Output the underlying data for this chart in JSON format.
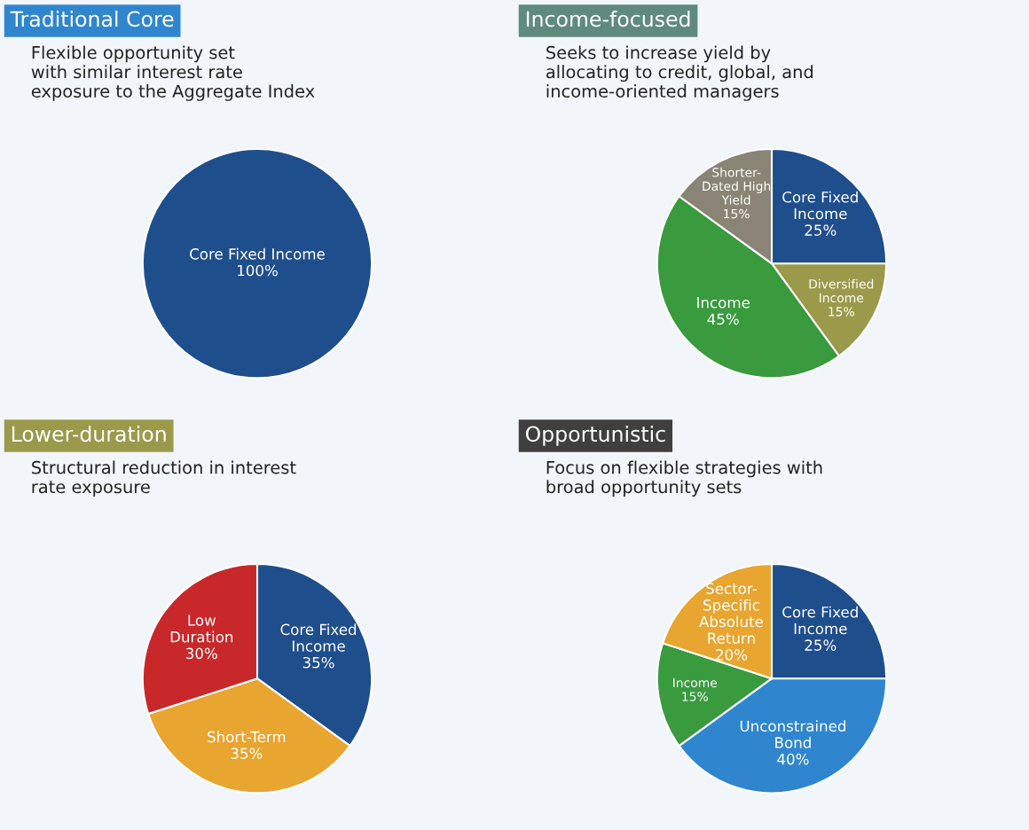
{
  "chart_data": [
    {
      "type": "pie",
      "title": "Traditional Core",
      "subtitle": "Flexible opportunity set\nwith similar interest rate\nexposure to the Aggregate Index",
      "categories": [
        "Core Fixed Income"
      ],
      "values": [
        100
      ],
      "value_labels": [
        "100%"
      ],
      "colors": [
        "#1f4e8c"
      ]
    },
    {
      "type": "pie",
      "title": "Income-focused",
      "subtitle": "Seeks to increase yield by\nallocating to credit, global, and\nincome-oriented managers",
      "categories": [
        "Core Fixed\nIncome",
        "Diversified\nIncome",
        "Income",
        "Shorter-\nDated High\nYield"
      ],
      "values": [
        25,
        15,
        45,
        15
      ],
      "value_labels": [
        "25%",
        "15%",
        "45%",
        "15%"
      ],
      "colors": [
        "#1f4e8c",
        "#9a9a4a",
        "#3a9a3e",
        "#8a8476"
      ]
    },
    {
      "type": "pie",
      "title": "Lower-duration",
      "subtitle": "Structural reduction in interest\nrate exposure",
      "categories": [
        "Core Fixed\nIncome",
        "Short-Term",
        "Low\nDuration"
      ],
      "values": [
        35,
        35,
        30
      ],
      "value_labels": [
        "35%",
        "35%",
        "30%"
      ],
      "colors": [
        "#1f4e8c",
        "#e8a530",
        "#c8282a"
      ]
    },
    {
      "type": "pie",
      "title": "Opportunistic",
      "subtitle": "Focus on flexible strategies with\nbroad opportunity sets",
      "categories": [
        "Core Fixed\nIncome",
        "Unconstrained\nBond",
        "Income",
        "Sector-\nSpecific\nAbsolute\nReturn"
      ],
      "values": [
        25,
        40,
        15,
        20
      ],
      "value_labels": [
        "25%",
        "40%",
        "15%",
        "20%"
      ],
      "colors": [
        "#1f4e8c",
        "#2f86cf",
        "#3a9a3e",
        "#e8a530"
      ]
    }
  ]
}
